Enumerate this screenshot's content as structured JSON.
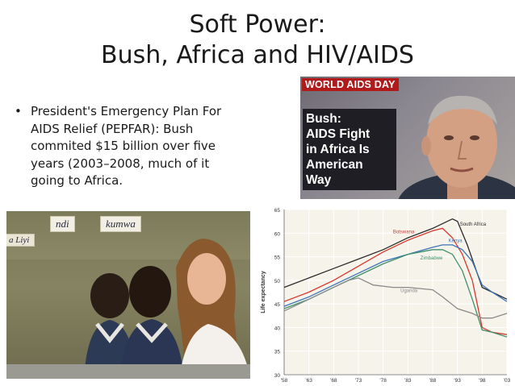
{
  "slide": {
    "title_line1": "Soft Power:",
    "title_line2": "Bush, Africa and HIV/AIDS",
    "bullet_marker": "•",
    "bullet_lines": [
      "President's Emergency Plan For",
      "AIDS Relief (PEPFAR):  Bush",
      "commited $15 billion over five",
      "years (2003–2008, much of it",
      "going to Africa."
    ]
  },
  "news_image": {
    "tag": "WORLD AIDS DAY",
    "headline_lines": [
      "Bush:",
      "AIDS Fight",
      "in Africa Is",
      "American Way"
    ]
  },
  "classroom_image": {
    "board_labels": [
      "ndi",
      "kumwa"
    ],
    "edge_label": "a Liyi"
  },
  "colors": {
    "south_africa": "#2b2b2b",
    "botswana": "#d6362e",
    "kenya": "#3d73b8",
    "zimbabwe": "#3f8f6a",
    "uganda": "#8a8a8a",
    "news_tag": "#b11a1a"
  },
  "chart_data": {
    "type": "line",
    "ylabel": "Life expectancy",
    "ylim": [
      30,
      65
    ],
    "yticks": [
      30,
      35,
      40,
      45,
      50,
      55,
      60,
      65
    ],
    "xlim": [
      1958,
      2003
    ],
    "xtick_labels": [
      "'58",
      "'63",
      "'68",
      "'73",
      "'78",
      "'83",
      "'88",
      "'93",
      "'98",
      "'03"
    ],
    "xtick_values": [
      1958,
      1963,
      1968,
      1973,
      1978,
      1983,
      1988,
      1993,
      1998,
      2003
    ],
    "series": [
      {
        "name": "South Africa",
        "x": [
          1958,
          1963,
          1968,
          1973,
          1978,
          1983,
          1988,
          1991,
          1992,
          1993,
          1995,
          1998,
          2000,
          2003
        ],
        "y": [
          48.5,
          50.5,
          52.5,
          54.5,
          56.5,
          59,
          61,
          62.5,
          63,
          62.5,
          57.5,
          48.5,
          47.5,
          46
        ]
      },
      {
        "name": "Botswana",
        "x": [
          1958,
          1963,
          1968,
          1973,
          1978,
          1983,
          1988,
          1990,
          1992,
          1994,
          1996,
          1998,
          2000,
          2003
        ],
        "y": [
          45.5,
          47.5,
          50,
          53,
          56,
          58.5,
          60.5,
          61,
          59,
          55.5,
          50,
          40,
          39,
          38.5
        ]
      },
      {
        "name": "Kenya",
        "x": [
          1958,
          1963,
          1968,
          1973,
          1978,
          1983,
          1988,
          1990,
          1992,
          1994,
          1996,
          1998,
          2000,
          2003
        ],
        "y": [
          44.5,
          46.5,
          49,
          51.5,
          54,
          55.5,
          57,
          57.5,
          57.5,
          56.5,
          54,
          49,
          47.5,
          45.5
        ]
      },
      {
        "name": "Zimbabwe",
        "x": [
          1958,
          1963,
          1968,
          1973,
          1978,
          1983,
          1988,
          1990,
          1992,
          1994,
          1996,
          1998,
          2000,
          2003
        ],
        "y": [
          44,
          46,
          48.5,
          51,
          53.5,
          55.5,
          56.5,
          56.5,
          55.5,
          52,
          46,
          39.5,
          39,
          38
        ]
      },
      {
        "name": "Uganda",
        "x": [
          1958,
          1963,
          1968,
          1971,
          1973,
          1976,
          1980,
          1983,
          1988,
          1990,
          1993,
          1996,
          1998,
          2000,
          2003
        ],
        "y": [
          43.5,
          46,
          48.5,
          50,
          50.5,
          49,
          48.5,
          48.5,
          48,
          46.5,
          44,
          43,
          42,
          42,
          43
        ]
      }
    ]
  }
}
